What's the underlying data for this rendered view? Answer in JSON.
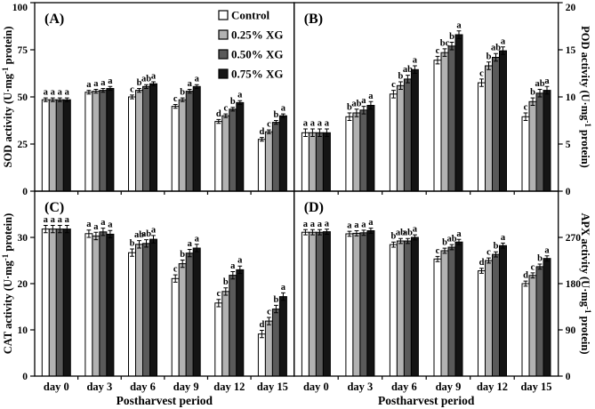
{
  "figure": {
    "background": "#ffffff",
    "axis_color": "#000000"
  },
  "x_axis": {
    "categories": [
      "day 0",
      "day 3",
      "day 6",
      "day 9",
      "day 12",
      "day 15"
    ],
    "title": "Postharvest period"
  },
  "legend": {
    "position": "top-right-of-panel-A",
    "items": [
      {
        "label": "Control",
        "fill": "#ffffff"
      },
      {
        "label": "0.25% XG",
        "fill": "#b2b2b2"
      },
      {
        "label": "0.50% XG",
        "fill": "#5a5a5a"
      },
      {
        "label": "0.75% XG",
        "fill": "#141414"
      }
    ]
  },
  "chart_data": [
    {
      "panel": "A",
      "panel_label": "(A)",
      "type": "bar",
      "name": "SOD activity",
      "position": "top-left",
      "axis_side": "left",
      "ylabel": {
        "pre": "SOD activity (U·mg",
        "sup": "-1",
        "post": " protein)"
      },
      "ylim": [
        0,
        100
      ],
      "yticks": [
        0,
        25,
        50,
        75,
        100
      ],
      "grid": false,
      "error_approx": 1.0,
      "series": [
        {
          "name": "Control",
          "values": [
            48.5,
            52.5,
            50.0,
            45.0,
            37.0,
            27.5
          ],
          "sig_letters": [
            "a",
            "a",
            "c",
            "c",
            "d",
            "d"
          ]
        },
        {
          "name": "0.25% XG",
          "values": [
            48.5,
            53.0,
            53.5,
            48.5,
            40.0,
            31.5
          ],
          "sig_letters": [
            "a",
            "a",
            "b",
            "b",
            "c",
            "c"
          ]
        },
        {
          "name": "0.50% XG",
          "values": [
            48.5,
            53.5,
            55.5,
            53.0,
            43.5,
            36.5
          ],
          "sig_letters": [
            "a",
            "a",
            "ab",
            "a",
            "b",
            "b"
          ]
        },
        {
          "name": "0.75% XG",
          "values": [
            48.5,
            54.5,
            57.0,
            55.5,
            47.0,
            40.0
          ],
          "sig_letters": [
            "a",
            "a",
            "a",
            "a",
            "a",
            "a"
          ]
        }
      ]
    },
    {
      "panel": "B",
      "panel_label": "(B)",
      "type": "bar",
      "name": "POD activity",
      "position": "top-right",
      "axis_side": "right",
      "ylabel": {
        "pre": "POD activity (U·mg",
        "sup": "-1",
        "post": " protein)"
      },
      "ylim": [
        0,
        20
      ],
      "yticks": [
        0,
        5,
        10,
        15,
        20
      ],
      "grid": false,
      "error_approx": 0.4,
      "series": [
        {
          "name": "Control",
          "values": [
            6.2,
            7.9,
            10.3,
            13.9,
            11.5,
            7.9
          ],
          "sig_letters": [
            "a",
            "b",
            "c",
            "c",
            "c",
            "c"
          ]
        },
        {
          "name": "0.25% XG",
          "values": [
            6.2,
            8.3,
            11.2,
            14.7,
            13.3,
            9.5
          ],
          "sig_letters": [
            "a",
            "ab",
            "b",
            "bc",
            "b",
            "b"
          ]
        },
        {
          "name": "0.50% XG",
          "values": [
            6.2,
            8.6,
            11.9,
            15.4,
            14.2,
            10.4
          ],
          "sig_letters": [
            "a",
            "a",
            "ab",
            "b",
            "ab",
            "ab"
          ]
        },
        {
          "name": "0.75% XG",
          "values": [
            6.2,
            9.1,
            12.9,
            16.6,
            14.9,
            10.7
          ],
          "sig_letters": [
            "a",
            "a",
            "a",
            "a",
            "a",
            "a"
          ]
        }
      ]
    },
    {
      "panel": "C",
      "panel_label": "(C)",
      "type": "bar",
      "name": "CAT activity",
      "position": "bottom-left",
      "axis_side": "left",
      "ylabel": {
        "pre": "CAT activity (U·mg",
        "sup": "-1",
        "post": " protein)"
      },
      "ylim": [
        0,
        40
      ],
      "yticks": [
        0,
        10,
        20,
        30
      ],
      "grid": false,
      "error_approx": 0.8,
      "series": [
        {
          "name": "Control",
          "values": [
            31.8,
            30.8,
            26.7,
            21.1,
            15.8,
            9.1
          ],
          "sig_letters": [
            "a",
            "a",
            "b",
            "c",
            "c",
            "d"
          ]
        },
        {
          "name": "0.25% XG",
          "values": [
            31.8,
            30.3,
            28.5,
            24.3,
            18.3,
            11.9
          ],
          "sig_letters": [
            "a",
            "a",
            "ab",
            "b",
            "b",
            "c"
          ]
        },
        {
          "name": "0.50% XG",
          "values": [
            31.8,
            31.2,
            28.7,
            26.6,
            21.8,
            14.5
          ],
          "sig_letters": [
            "a",
            "a",
            "ab",
            "a",
            "a",
            "b"
          ]
        },
        {
          "name": "0.75% XG",
          "values": [
            31.8,
            30.7,
            29.6,
            27.7,
            23.0,
            17.2
          ],
          "sig_letters": [
            "a",
            "a",
            "a",
            "a",
            "a",
            "a"
          ]
        }
      ]
    },
    {
      "panel": "D",
      "panel_label": "(D)",
      "type": "bar",
      "name": "APX activity",
      "position": "bottom-right",
      "axis_side": "right",
      "ylabel": {
        "pre": "APX activity (U·mg",
        "sup": "-1",
        "post": " protein)"
      },
      "ylim": [
        0,
        360
      ],
      "yticks": [
        0,
        90,
        180,
        270
      ],
      "grid": false,
      "error_approx": 5,
      "series": [
        {
          "name": "Control",
          "values": [
            280,
            277,
            256,
            228,
            205,
            180
          ],
          "sig_letters": [
            "a",
            "a",
            "b",
            "c",
            "d",
            "d"
          ]
        },
        {
          "name": "0.25% XG",
          "values": [
            280,
            278,
            263,
            244,
            225,
            196
          ],
          "sig_letters": [
            "a",
            "a",
            "ab",
            "b",
            "c",
            "c"
          ]
        },
        {
          "name": "0.50% XG",
          "values": [
            280,
            279,
            263,
            251,
            237,
            213
          ],
          "sig_letters": [
            "a",
            "a",
            "ab",
            "ab",
            "b",
            "b"
          ]
        },
        {
          "name": "0.75% XG",
          "values": [
            281,
            283,
            270,
            261,
            254,
            229
          ],
          "sig_letters": [
            "a",
            "a",
            "a",
            "a",
            "a",
            "a"
          ]
        }
      ]
    }
  ]
}
